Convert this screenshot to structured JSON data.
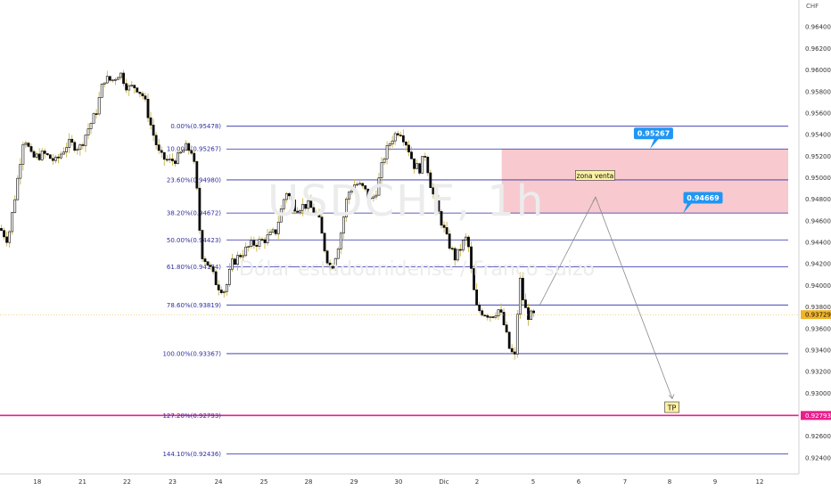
{
  "chart_data": {
    "type": "candlestick",
    "symbol_watermark": "USDCHF, 1h",
    "description_watermark": "Dólar estadounidense / Franco suizo",
    "currency_label": "CHF",
    "y_axis": {
      "min": 0.9225,
      "max": 0.9665,
      "ticks": [
        "0.96400",
        "0.96200",
        "0.96000",
        "0.95800",
        "0.95600",
        "0.95400",
        "0.95200",
        "0.95000",
        "0.94800",
        "0.94600",
        "0.94400",
        "0.94200",
        "0.94000",
        "0.93800",
        "0.93600",
        "0.93400",
        "0.93200",
        "0.93000",
        "0.92800",
        "0.92600",
        "0.92400"
      ]
    },
    "x_axis": {
      "ticks": [
        {
          "label": "18",
          "pos": 0.0467
        },
        {
          "label": "21",
          "pos": 0.1032
        },
        {
          "label": "22",
          "pos": 0.159
        },
        {
          "label": "23",
          "pos": 0.216
        },
        {
          "label": "24",
          "pos": 0.2735
        },
        {
          "label": "25",
          "pos": 0.3304
        },
        {
          "label": "28",
          "pos": 0.3862
        },
        {
          "label": "29",
          "pos": 0.4431
        },
        {
          "label": "30",
          "pos": 0.4989
        },
        {
          "label": "Dic",
          "pos": 0.5558
        },
        {
          "label": "2",
          "pos": 0.5971
        },
        {
          "label": "5",
          "pos": 0.6674
        },
        {
          "label": "6",
          "pos": 0.7243
        },
        {
          "label": "7",
          "pos": 0.7824
        },
        {
          "label": "8",
          "pos": 0.8382
        },
        {
          "label": "9",
          "pos": 0.8951
        },
        {
          "label": "12",
          "pos": 0.9509
        }
      ]
    },
    "price_path": [
      [
        0.0,
        0.9453
      ],
      [
        0.01,
        0.9442
      ],
      [
        0.02,
        0.9488
      ],
      [
        0.03,
        0.954
      ],
      [
        0.04,
        0.9518
      ],
      [
        0.055,
        0.9522
      ],
      [
        0.07,
        0.9515
      ],
      [
        0.085,
        0.9532
      ],
      [
        0.1,
        0.9528
      ],
      [
        0.11,
        0.9545
      ],
      [
        0.12,
        0.956
      ],
      [
        0.13,
        0.9592
      ],
      [
        0.14,
        0.959
      ],
      [
        0.15,
        0.9598
      ],
      [
        0.16,
        0.9583
      ],
      [
        0.17,
        0.9585
      ],
      [
        0.18,
        0.9575
      ],
      [
        0.19,
        0.9545
      ],
      [
        0.2,
        0.952
      ],
      [
        0.212,
        0.9515
      ],
      [
        0.222,
        0.9518
      ],
      [
        0.232,
        0.9528
      ],
      [
        0.24,
        0.9525
      ],
      [
        0.245,
        0.9503
      ],
      [
        0.252,
        0.943
      ],
      [
        0.262,
        0.9418
      ],
      [
        0.272,
        0.94
      ],
      [
        0.282,
        0.9395
      ],
      [
        0.29,
        0.942
      ],
      [
        0.3,
        0.9428
      ],
      [
        0.315,
        0.9438
      ],
      [
        0.33,
        0.9442
      ],
      [
        0.345,
        0.945
      ],
      [
        0.358,
        0.9488
      ],
      [
        0.37,
        0.9472
      ],
      [
        0.385,
        0.9475
      ],
      [
        0.398,
        0.9465
      ],
      [
        0.408,
        0.9428
      ],
      [
        0.415,
        0.9415
      ],
      [
        0.425,
        0.9442
      ],
      [
        0.435,
        0.9485
      ],
      [
        0.445,
        0.9495
      ],
      [
        0.455,
        0.949
      ],
      [
        0.465,
        0.9478
      ],
      [
        0.472,
        0.949
      ],
      [
        0.48,
        0.9518
      ],
      [
        0.49,
        0.9536
      ],
      [
        0.5,
        0.9545
      ],
      [
        0.51,
        0.953
      ],
      [
        0.518,
        0.9512
      ],
      [
        0.525,
        0.9508
      ],
      [
        0.532,
        0.9522
      ],
      [
        0.54,
        0.949
      ],
      [
        0.55,
        0.9465
      ],
      [
        0.56,
        0.9442
      ],
      [
        0.57,
        0.9425
      ],
      [
        0.58,
        0.944
      ],
      [
        0.585,
        0.9445
      ],
      [
        0.592,
        0.94
      ],
      [
        0.597,
        0.9378
      ],
      [
        0.605,
        0.9375
      ],
      [
        0.615,
        0.9372
      ],
      [
        0.625,
        0.9378
      ],
      [
        0.632,
        0.936
      ],
      [
        0.638,
        0.934
      ],
      [
        0.645,
        0.9333
      ],
      [
        0.65,
        0.941
      ],
      [
        0.655,
        0.9385
      ],
      [
        0.66,
        0.9372
      ],
      [
        0.667,
        0.9372
      ]
    ],
    "fibonacci": [
      {
        "label": "0.00%(0.95478)",
        "price": 0.95478
      },
      {
        "label": "10.00%(0.95267)",
        "price": 0.95267
      },
      {
        "label": "23.60%(0.94980)",
        "price": 0.9498
      },
      {
        "label": "38.20%(0.94672)",
        "price": 0.94672
      },
      {
        "label": "50.00%(0.94423)",
        "price": 0.94423
      },
      {
        "label": "61.80%(0.94174)",
        "price": 0.94174
      },
      {
        "label": "78.60%(0.93819)",
        "price": 0.93819
      },
      {
        "label": "100.00%(0.93367)",
        "price": 0.93367
      },
      {
        "label": "127.20%(0.92793)",
        "price": 0.92793
      },
      {
        "label": "144.10%(0.92436)",
        "price": 0.92436
      }
    ],
    "sell_zone": {
      "label": "zona venta",
      "top": 0.95267,
      "bottom": 0.94669
    },
    "callouts": [
      {
        "text": "0.95267",
        "price": 0.95267
      },
      {
        "text": "0.94669",
        "price": 0.94669
      }
    ],
    "target": {
      "label": "TP",
      "price": 0.92793
    },
    "current_price": {
      "value": "0.93729",
      "price": 0.93729
    },
    "tp_price_tag": {
      "value": "0.92793",
      "price": 0.92793
    },
    "colors": {
      "up": "#0a0a0a",
      "down": "#0a0a0a",
      "wick": "#c9b44a",
      "fib": "#2a2aa8",
      "zone": "#f7c4ca",
      "tp_line": "#e91e8c",
      "current": "#f0b429",
      "callout": "#2196f3",
      "arrow": "#8a8a8a"
    }
  }
}
